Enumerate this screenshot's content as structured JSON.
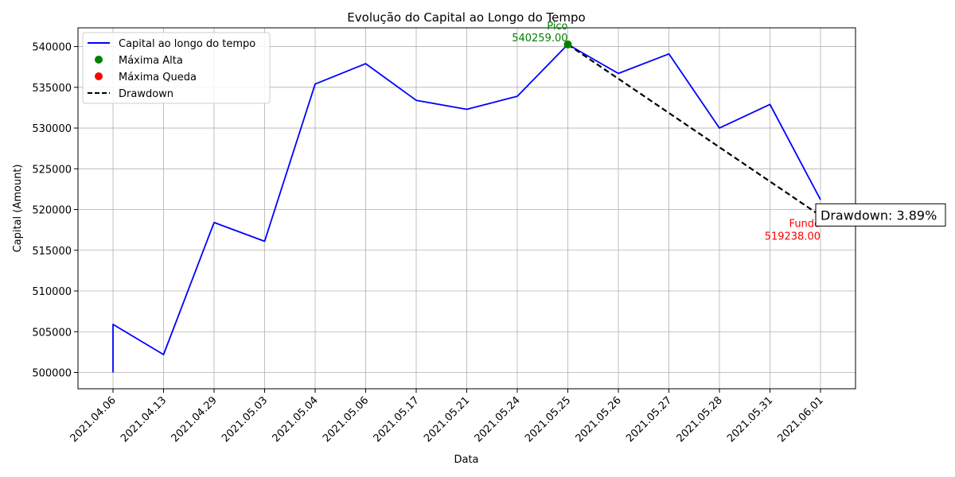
{
  "chart_data": {
    "type": "line",
    "title": "Evolução do Capital ao Longo do Tempo",
    "xlabel": "Data",
    "ylabel": "Capital (Amount)",
    "categories": [
      "2021.04.06",
      "2021.04.13",
      "2021.04.29",
      "2021.05.03",
      "2021.05.04",
      "2021.05.06",
      "2021.05.17",
      "2021.05.21",
      "2021.05.24",
      "2021.05.25",
      "2021.05.26",
      "2021.05.27",
      "2021.05.28",
      "2021.05.31",
      "2021.06.01"
    ],
    "ylim": [
      498000,
      542300
    ],
    "yticks": [
      500000,
      505000,
      510000,
      515000,
      520000,
      525000,
      530000,
      535000,
      540000
    ],
    "grid": true,
    "legend_position": "top-left",
    "series": [
      {
        "name": "Capital ao longo do tempo",
        "color": "#0000ff",
        "points": [
          {
            "x": 0,
            "y": 500000
          },
          {
            "x": 0,
            "y": 505900
          },
          {
            "x": 1,
            "y": 502200
          },
          {
            "x": 2,
            "y": 518400
          },
          {
            "x": 3,
            "y": 516100
          },
          {
            "x": 4,
            "y": 535400
          },
          {
            "x": 5,
            "y": 537900
          },
          {
            "x": 6,
            "y": 533400
          },
          {
            "x": 7,
            "y": 532300
          },
          {
            "x": 8,
            "y": 533900
          },
          {
            "x": 9,
            "y": 540259
          },
          {
            "x": 10,
            "y": 536700
          },
          {
            "x": 11,
            "y": 539100
          },
          {
            "x": 12,
            "y": 530000
          },
          {
            "x": 13,
            "y": 532900
          },
          {
            "x": 14,
            "y": 521200
          }
        ]
      }
    ],
    "peak": {
      "name": "Máxima Alta",
      "x": 9,
      "y": 540259,
      "label": "Pico",
      "value_label": "540259.00",
      "color": "#008000"
    },
    "trough": {
      "name": "Máxima Queda",
      "x": 14,
      "y": 519238,
      "label": "Fundo",
      "value_label": "519238.00",
      "color": "#ff0000"
    },
    "drawdown": {
      "name": "Drawdown",
      "label": "Drawdown: 3.89%",
      "color": "#000000"
    }
  }
}
